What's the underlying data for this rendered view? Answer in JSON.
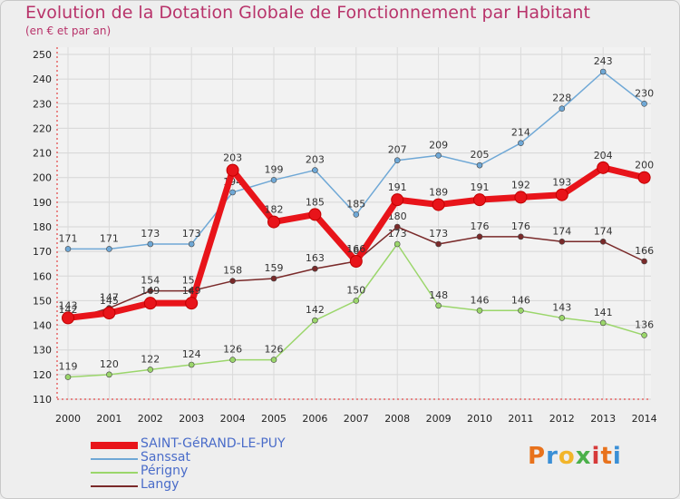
{
  "header": {
    "title": "Evolution de la Dotation Globale de Fonctionnement par Habitant",
    "subtitle": "(en € et par an)"
  },
  "logo": {
    "text": "Proxiti",
    "colors": [
      "#e8721c",
      "#3a8fd6",
      "#f2b52a",
      "#4bb04a",
      "#d63a3a"
    ]
  },
  "chart_data": {
    "type": "line",
    "x": [
      "2000",
      "2001",
      "2002",
      "2003",
      "2004",
      "2005",
      "2006",
      "2007",
      "2008",
      "2009",
      "2010",
      "2011",
      "2012",
      "2013",
      "2014"
    ],
    "ylim": [
      110,
      250
    ],
    "yticks": [
      110,
      120,
      130,
      140,
      150,
      160,
      170,
      180,
      190,
      200,
      210,
      220,
      230,
      240,
      250
    ],
    "grid": true,
    "legend_position": "bottom-left",
    "series": [
      {
        "name": "SAINT-GéRAND-LE-PUY",
        "color": "#e8141a",
        "thick": true,
        "values": [
          143,
          145,
          149,
          149,
          203,
          182,
          185,
          166,
          191,
          189,
          191,
          192,
          193,
          204,
          200
        ]
      },
      {
        "name": "Sanssat",
        "color": "#6fa8d6",
        "thick": false,
        "values": [
          171,
          171,
          173,
          173,
          194,
          199,
          203,
          185,
          207,
          209,
          205,
          214,
          228,
          243,
          230
        ]
      },
      {
        "name": "Périgny",
        "color": "#9bd66b",
        "thick": false,
        "values": [
          119,
          120,
          122,
          124,
          126,
          126,
          142,
          150,
          173,
          148,
          146,
          146,
          143,
          141,
          136
        ]
      },
      {
        "name": "Langy",
        "color": "#7a2a2a",
        "thick": false,
        "values": [
          142,
          147,
          154,
          154,
          158,
          159,
          163,
          166,
          180,
          173,
          176,
          176,
          174,
          174,
          166
        ]
      }
    ]
  }
}
